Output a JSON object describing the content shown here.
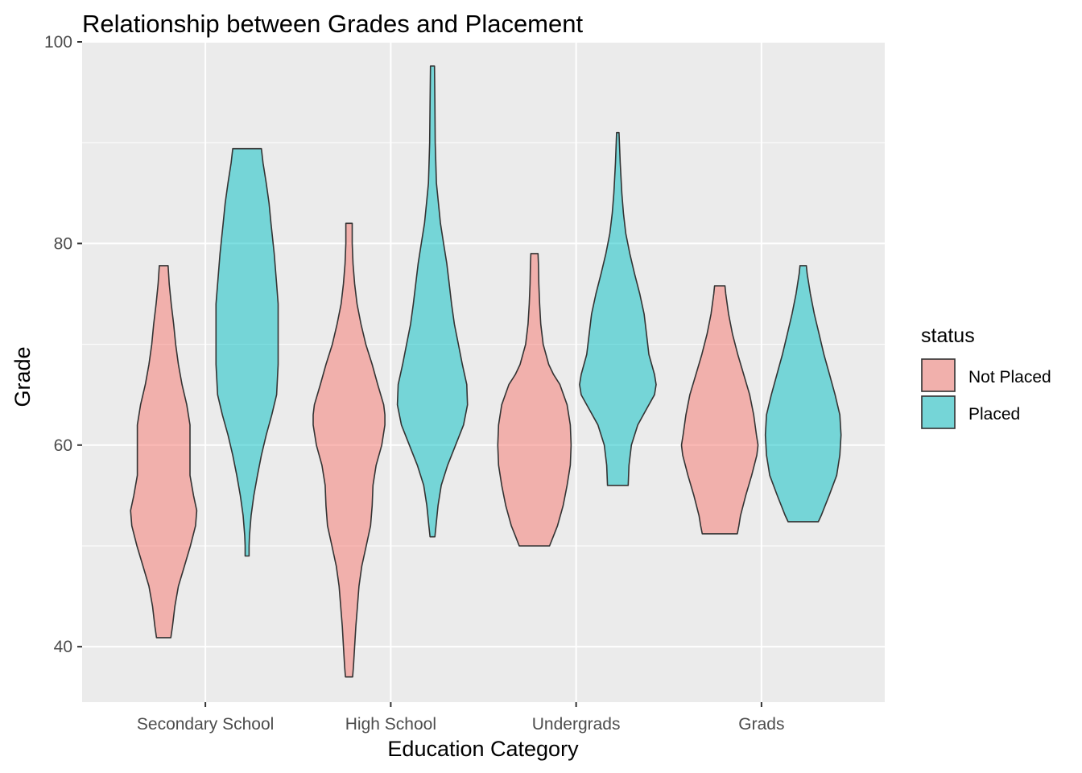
{
  "chart_data": {
    "type": "violin",
    "title": "Relationship between Grades and Placement",
    "xlabel": "Education Category",
    "ylabel": "Grade",
    "categories": [
      "Secondary School",
      "High School",
      "Undergrads",
      "Grads"
    ],
    "ylim": [
      34.5,
      100
    ],
    "y_ticks": [
      40,
      60,
      80,
      100
    ],
    "grid": true,
    "legend": {
      "title": "status",
      "position": "right"
    },
    "series": [
      {
        "name": "Not Placed",
        "color": "#f8766d",
        "violins": [
          {
            "category": "Secondary School",
            "min": 40.9,
            "max": 77.8,
            "profile": [
              [
                40.9,
                0.18
              ],
              [
                42,
                0.22
              ],
              [
                44,
                0.28
              ],
              [
                46,
                0.37
              ],
              [
                48,
                0.52
              ],
              [
                50,
                0.67
              ],
              [
                52,
                0.8
              ],
              [
                53.5,
                0.83
              ],
              [
                55,
                0.75
              ],
              [
                57,
                0.66
              ],
              [
                60,
                0.66
              ],
              [
                62,
                0.66
              ],
              [
                64,
                0.58
              ],
              [
                66,
                0.46
              ],
              [
                68,
                0.37
              ],
              [
                70,
                0.3
              ],
              [
                72,
                0.25
              ],
              [
                74,
                0.19
              ],
              [
                76,
                0.14
              ],
              [
                77.8,
                0.11
              ]
            ]
          },
          {
            "category": "High School",
            "min": 37.0,
            "max": 82.0,
            "profile": [
              [
                37,
                0.09
              ],
              [
                38,
                0.11
              ],
              [
                40,
                0.14
              ],
              [
                42,
                0.17
              ],
              [
                44,
                0.21
              ],
              [
                46,
                0.25
              ],
              [
                48,
                0.32
              ],
              [
                50,
                0.43
              ],
              [
                52,
                0.54
              ],
              [
                54,
                0.58
              ],
              [
                56,
                0.6
              ],
              [
                58,
                0.68
              ],
              [
                60,
                0.82
              ],
              [
                62,
                0.9
              ],
              [
                63,
                0.9
              ],
              [
                64,
                0.87
              ],
              [
                66,
                0.72
              ],
              [
                68,
                0.58
              ],
              [
                70,
                0.42
              ],
              [
                72,
                0.3
              ],
              [
                74,
                0.2
              ],
              [
                76,
                0.14
              ],
              [
                78,
                0.1
              ],
              [
                80,
                0.08
              ],
              [
                82,
                0.08
              ]
            ]
          },
          {
            "category": "Undergrads",
            "min": 50.0,
            "max": 79.0,
            "profile": [
              [
                50,
                0.38
              ],
              [
                51,
                0.48
              ],
              [
                52,
                0.58
              ],
              [
                54,
                0.72
              ],
              [
                56,
                0.82
              ],
              [
                58,
                0.9
              ],
              [
                60,
                0.92
              ],
              [
                62,
                0.9
              ],
              [
                64,
                0.82
              ],
              [
                66,
                0.64
              ],
              [
                67,
                0.48
              ],
              [
                68,
                0.36
              ],
              [
                70,
                0.22
              ],
              [
                72,
                0.16
              ],
              [
                74,
                0.13
              ],
              [
                76,
                0.11
              ],
              [
                78,
                0.1
              ],
              [
                79,
                0.09
              ]
            ]
          },
          {
            "category": "Grads",
            "min": 51.2,
            "max": 75.8,
            "profile": [
              [
                51.2,
                0.44
              ],
              [
                52,
                0.48
              ],
              [
                53,
                0.52
              ],
              [
                55,
                0.65
              ],
              [
                57,
                0.8
              ],
              [
                59,
                0.93
              ],
              [
                60,
                0.96
              ],
              [
                61,
                0.92
              ],
              [
                63,
                0.85
              ],
              [
                65,
                0.75
              ],
              [
                67,
                0.6
              ],
              [
                69,
                0.45
              ],
              [
                71,
                0.32
              ],
              [
                73,
                0.22
              ],
              [
                75,
                0.15
              ],
              [
                75.8,
                0.13
              ]
            ]
          }
        ]
      },
      {
        "name": "Placed",
        "color": "#00bfc4",
        "violins": [
          {
            "category": "Secondary School",
            "min": 49.0,
            "max": 89.4,
            "profile": [
              [
                49,
                0.05
              ],
              [
                50,
                0.05
              ],
              [
                51,
                0.06
              ],
              [
                53,
                0.1
              ],
              [
                55,
                0.17
              ],
              [
                57,
                0.26
              ],
              [
                59,
                0.36
              ],
              [
                61,
                0.48
              ],
              [
                63,
                0.62
              ],
              [
                65,
                0.74
              ],
              [
                68,
                0.78
              ],
              [
                71,
                0.78
              ],
              [
                74,
                0.78
              ],
              [
                76,
                0.74
              ],
              [
                79,
                0.68
              ],
              [
                82,
                0.6
              ],
              [
                84,
                0.55
              ],
              [
                86,
                0.48
              ],
              [
                88,
                0.4
              ],
              [
                89.4,
                0.36
              ]
            ]
          },
          {
            "category": "High School",
            "min": 50.9,
            "max": 97.6,
            "profile": [
              [
                50.9,
                0.06
              ],
              [
                52,
                0.09
              ],
              [
                54,
                0.14
              ],
              [
                56,
                0.22
              ],
              [
                58,
                0.38
              ],
              [
                60,
                0.58
              ],
              [
                62,
                0.78
              ],
              [
                64,
                0.88
              ],
              [
                66,
                0.86
              ],
              [
                68,
                0.75
              ],
              [
                70,
                0.65
              ],
              [
                72,
                0.55
              ],
              [
                74,
                0.48
              ],
              [
                76,
                0.42
              ],
              [
                78,
                0.36
              ],
              [
                80,
                0.28
              ],
              [
                82,
                0.2
              ],
              [
                84,
                0.15
              ],
              [
                86,
                0.1
              ],
              [
                90,
                0.07
              ],
              [
                94,
                0.06
              ],
              [
                97.6,
                0.05
              ]
            ]
          },
          {
            "category": "Undergrads",
            "min": 56.0,
            "max": 91.0,
            "profile": [
              [
                56,
                0.26
              ],
              [
                57,
                0.27
              ],
              [
                58,
                0.28
              ],
              [
                60,
                0.34
              ],
              [
                62,
                0.5
              ],
              [
                64,
                0.78
              ],
              [
                65,
                0.92
              ],
              [
                66,
                0.96
              ],
              [
                67,
                0.92
              ],
              [
                69,
                0.78
              ],
              [
                71,
                0.72
              ],
              [
                73,
                0.66
              ],
              [
                75,
                0.55
              ],
              [
                77,
                0.42
              ],
              [
                79,
                0.3
              ],
              [
                81,
                0.2
              ],
              [
                83,
                0.14
              ],
              [
                85,
                0.1
              ],
              [
                88,
                0.06
              ],
              [
                91,
                0.03
              ]
            ]
          },
          {
            "category": "Grads",
            "min": 52.4,
            "max": 77.8,
            "profile": [
              [
                52.4,
                0.38
              ],
              [
                53,
                0.45
              ],
              [
                55,
                0.65
              ],
              [
                57,
                0.84
              ],
              [
                59,
                0.92
              ],
              [
                61,
                0.95
              ],
              [
                63,
                0.92
              ],
              [
                65,
                0.8
              ],
              [
                67,
                0.66
              ],
              [
                69,
                0.52
              ],
              [
                71,
                0.4
              ],
              [
                73,
                0.28
              ],
              [
                75,
                0.18
              ],
              [
                77,
                0.1
              ],
              [
                77.8,
                0.08
              ]
            ]
          }
        ]
      }
    ]
  }
}
